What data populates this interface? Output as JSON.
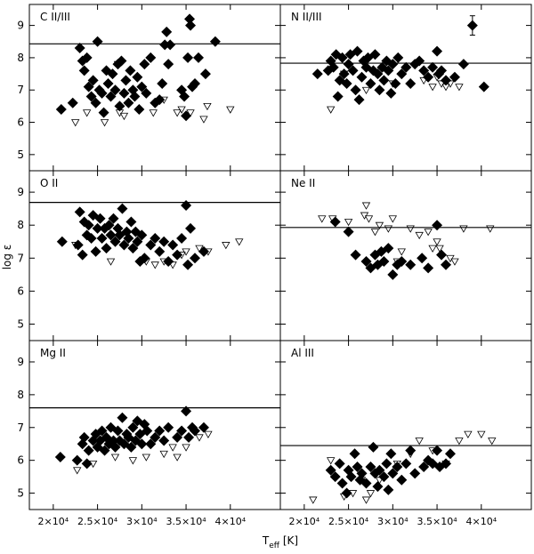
{
  "chart_data": {
    "type": "scatter",
    "xlabel_parts": [
      "T",
      "eff",
      " [K]"
    ],
    "ylabel": "log ε",
    "xlim": [
      17300,
      45650
    ],
    "ylim": [
      4.5,
      9.65
    ],
    "xticks": [
      {
        "value": 20000,
        "label": "2×10⁴"
      },
      {
        "value": 25000,
        "label": "2.5×10⁴"
      },
      {
        "value": 30000,
        "label": "3×10⁴"
      },
      {
        "value": 35000,
        "label": "3.5×10⁴"
      },
      {
        "value": 40000,
        "label": "4×10⁴"
      }
    ],
    "yticks": [
      5,
      6,
      7,
      8,
      9
    ],
    "panels": [
      {
        "title": "C II/III",
        "reference": 8.43,
        "series": [
          {
            "marker": "diamond",
            "color": "#000000",
            "x": [
              20900,
              22200,
              23000,
              23300,
              23500,
              23800,
              24000,
              24300,
              24500,
              24800,
              25000,
              25200,
              25500,
              25700,
              26000,
              26200,
              26500,
              26700,
              27000,
              27300,
              27500,
              27700,
              28000,
              28200,
              28500,
              28700,
              29000,
              29200,
              29500,
              29700,
              30000,
              30300,
              30500,
              31000,
              31500,
              32000,
              32300,
              32600,
              32800,
              33000,
              33200,
              34500,
              34800,
              35000,
              35200,
              35400,
              35500,
              35700,
              36000,
              36400,
              37200,
              38300
            ],
            "values": [
              6.4,
              6.6,
              8.3,
              7.9,
              7.6,
              8.0,
              7.1,
              6.8,
              7.3,
              6.6,
              8.5,
              7.0,
              6.9,
              6.3,
              7.6,
              7.2,
              6.8,
              7.5,
              7.0,
              7.8,
              6.5,
              7.9,
              6.9,
              7.3,
              6.6,
              7.6,
              7.0,
              6.8,
              7.4,
              6.4,
              7.1,
              7.8,
              6.9,
              8.0,
              6.6,
              6.7,
              7.2,
              8.4,
              8.8,
              7.8,
              8.4,
              7.0,
              6.8,
              6.2,
              8.0,
              9.2,
              9.0,
              7.1,
              7.2,
              8.0,
              7.5,
              8.5
            ]
          },
          {
            "marker": "triangle",
            "color": "#000000",
            "x": [
              22500,
              23800,
              25800,
              27300,
              27500,
              28000,
              31300,
              32500,
              34000,
              34500,
              35500,
              37000,
              37400,
              40000
            ],
            "values": [
              6.0,
              6.3,
              6.0,
              7.8,
              6.3,
              6.2,
              6.3,
              6.7,
              6.3,
              6.4,
              6.3,
              6.1,
              6.5,
              6.4
            ]
          }
        ]
      },
      {
        "title": "N II/III",
        "reference": 7.83,
        "errorbar": {
          "x": 39000,
          "y": 9.0,
          "err": 0.3
        },
        "series": [
          {
            "marker": "diamond",
            "color": "#000000",
            "x": [
              21500,
              22700,
              23000,
              23300,
              23600,
              23800,
              24000,
              24300,
              24500,
              24800,
              25000,
              25200,
              25500,
              25800,
              26000,
              26200,
              26500,
              26700,
              27000,
              27200,
              27500,
              27800,
              28000,
              28300,
              28500,
              28800,
              29000,
              29300,
              29500,
              29800,
              30000,
              30300,
              30600,
              31000,
              31500,
              32000,
              32500,
              33000,
              33500,
              34000,
              34500,
              35000,
              35200,
              35500,
              36000,
              37000,
              38000,
              40300
            ],
            "values": [
              7.5,
              7.6,
              7.9,
              7.7,
              8.1,
              6.8,
              7.3,
              8.0,
              7.5,
              7.2,
              7.8,
              8.1,
              7.6,
              7.0,
              8.2,
              6.7,
              7.4,
              7.9,
              7.7,
              8.0,
              7.2,
              7.6,
              8.1,
              7.5,
              7.0,
              7.7,
              7.3,
              7.9,
              7.6,
              6.9,
              7.8,
              7.2,
              8.0,
              7.5,
              7.7,
              7.2,
              7.8,
              7.9,
              7.6,
              7.4,
              7.7,
              8.2,
              7.5,
              7.6,
              7.3,
              7.4,
              7.8,
              7.1
            ]
          },
          {
            "marker": "triangle",
            "color": "#000000",
            "x": [
              23000,
              24500,
              27000,
              30000,
              33500,
              34500,
              35000,
              35500,
              36000,
              36500,
              37500
            ],
            "values": [
              6.4,
              7.5,
              7.0,
              7.2,
              7.3,
              7.1,
              7.4,
              7.2,
              7.1,
              7.2,
              7.1
            ]
          }
        ]
      },
      {
        "title": "O II",
        "reference": 8.69,
        "series": [
          {
            "marker": "diamond",
            "color": "#000000",
            "x": [
              21000,
              22800,
              23000,
              23300,
              23500,
              23800,
              24000,
              24300,
              24500,
              24800,
              25000,
              25300,
              25500,
              25800,
              26000,
              26300,
              26500,
              26800,
              27000,
              27300,
              27500,
              27800,
              28000,
              28300,
              28500,
              28800,
              29000,
              29300,
              29500,
              29800,
              30000,
              30300,
              31000,
              31500,
              32000,
              32500,
              33000,
              33500,
              34000,
              34500,
              35000,
              35200,
              35500,
              36000,
              37000
            ],
            "values": [
              7.5,
              7.4,
              8.4,
              7.1,
              8.1,
              7.7,
              8.0,
              7.6,
              8.3,
              7.2,
              7.9,
              8.2,
              7.6,
              7.9,
              7.3,
              8.0,
              7.7,
              8.2,
              7.5,
              7.9,
              7.7,
              8.5,
              7.4,
              7.8,
              7.6,
              8.1,
              7.3,
              7.8,
              7.5,
              6.9,
              7.7,
              7.0,
              7.4,
              7.6,
              7.2,
              7.5,
              6.9,
              7.4,
              7.1,
              7.6,
              8.6,
              6.8,
              7.9,
              7.0,
              7.2
            ]
          },
          {
            "marker": "triangle",
            "color": "#000000",
            "x": [
              22500,
              26500,
              30500,
              31500,
              32500,
              33500,
              34500,
              35000,
              36500,
              37500,
              39500,
              41000
            ],
            "values": [
              7.4,
              6.9,
              6.9,
              6.8,
              6.9,
              6.8,
              7.1,
              7.2,
              7.3,
              7.2,
              7.4,
              7.5
            ]
          }
        ]
      },
      {
        "title": "Ne II",
        "reference": 7.93,
        "series": [
          {
            "marker": "diamond",
            "color": "#000000",
            "x": [
              23500,
              25000,
              25800,
              27000,
              27500,
              28000,
              28300,
              28700,
              29000,
              29500,
              30000,
              30500,
              31000,
              32000,
              33300,
              34000,
              35000,
              35500,
              36000
            ],
            "values": [
              8.1,
              7.8,
              7.1,
              6.9,
              6.7,
              7.1,
              6.8,
              7.2,
              6.9,
              7.3,
              6.5,
              6.8,
              6.9,
              6.8,
              7.0,
              6.7,
              8.0,
              7.1,
              6.8
            ]
          },
          {
            "marker": "triangle",
            "color": "#000000",
            "x": [
              22000,
              23200,
              25000,
              26800,
              27000,
              27300,
              28000,
              28500,
              29500,
              30000,
              30500,
              31000,
              32000,
              33000,
              34000,
              34500,
              35000,
              35300,
              36500,
              37000,
              38000,
              41000
            ],
            "values": [
              8.2,
              8.2,
              8.1,
              8.3,
              8.6,
              8.2,
              7.8,
              8.0,
              7.9,
              8.2,
              6.9,
              7.2,
              7.9,
              7.7,
              7.8,
              7.3,
              7.5,
              7.3,
              7.0,
              6.9,
              7.9,
              7.9
            ]
          }
        ]
      },
      {
        "title": "Mg II",
        "reference": 7.6,
        "series": [
          {
            "marker": "diamond",
            "color": "#000000",
            "x": [
              20800,
              22700,
              23300,
              23500,
              23800,
              24000,
              24500,
              24800,
              25000,
              25300,
              25500,
              25800,
              26000,
              26300,
              26500,
              26800,
              27000,
              27300,
              27500,
              27800,
              28000,
              28300,
              28500,
              28800,
              29000,
              29300,
              29500,
              29800,
              30000,
              30300,
              30600,
              31000,
              31500,
              32000,
              32500,
              33000,
              34000,
              34500,
              35000,
              35300,
              35700,
              36000,
              37000
            ],
            "values": [
              6.1,
              6.0,
              6.5,
              6.7,
              5.9,
              6.3,
              6.6,
              6.8,
              6.4,
              6.6,
              6.9,
              6.3,
              6.7,
              6.5,
              7.0,
              6.6,
              6.4,
              6.9,
              6.6,
              7.3,
              6.5,
              6.8,
              6.7,
              6.4,
              7.0,
              6.6,
              7.2,
              6.8,
              6.5,
              7.1,
              6.9,
              6.5,
              6.7,
              6.9,
              6.6,
              7.0,
              6.7,
              6.9,
              7.5,
              6.7,
              7.0,
              6.9,
              7.0
            ]
          },
          {
            "marker": "triangle",
            "color": "#000000",
            "x": [
              22700,
              24500,
              27000,
              29000,
              30500,
              32500,
              33500,
              34000,
              35000,
              36500,
              37500
            ],
            "values": [
              5.7,
              5.9,
              6.1,
              6.0,
              6.1,
              6.2,
              6.4,
              6.1,
              6.4,
              6.7,
              6.8
            ]
          }
        ]
      },
      {
        "title": "Al III",
        "reference": 6.45,
        "series": [
          {
            "marker": "diamond",
            "color": "#000000",
            "x": [
              23000,
              23500,
              24000,
              24300,
              24800,
              25000,
              25300,
              25700,
              26000,
              26300,
              26500,
              27000,
              27500,
              27800,
              28000,
              28300,
              28500,
              29000,
              29300,
              29500,
              29800,
              30000,
              30500,
              31000,
              31500,
              32000,
              32500,
              33500,
              34000,
              34500,
              35000,
              35300,
              36000,
              36500
            ],
            "values": [
              5.7,
              5.5,
              5.9,
              5.3,
              5.0,
              5.7,
              5.5,
              6.2,
              5.8,
              5.4,
              5.6,
              5.3,
              5.8,
              6.4,
              5.6,
              5.2,
              5.7,
              5.5,
              5.9,
              5.1,
              6.2,
              5.6,
              5.8,
              5.4,
              5.9,
              6.3,
              5.6,
              5.8,
              6.0,
              5.9,
              6.3,
              5.8,
              5.9,
              6.2
            ]
          },
          {
            "marker": "triangle",
            "color": "#000000",
            "x": [
              21000,
              23000,
              24500,
              25500,
              26500,
              27000,
              27500,
              28500,
              30500,
              32000,
              33000,
              34500,
              36000,
              37500,
              38500,
              40000,
              41200
            ],
            "values": [
              4.8,
              6.0,
              4.9,
              5.0,
              5.4,
              4.8,
              5.0,
              5.4,
              5.9,
              6.2,
              6.6,
              6.3,
              5.9,
              6.6,
              6.8,
              6.8,
              6.6
            ]
          }
        ]
      }
    ]
  }
}
